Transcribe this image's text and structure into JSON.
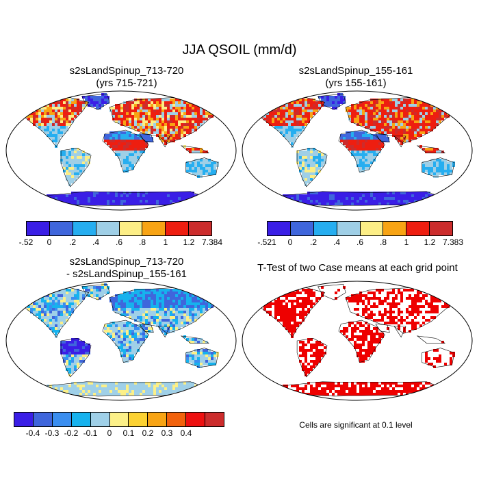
{
  "title": "JJA QSOIL (mm/d)",
  "panels": [
    {
      "line1": "s2sLandSpinup_713-720",
      "line2": "(yrs 715-721)",
      "scheme": "abs_a"
    },
    {
      "line1": "s2sLandSpinup_155-161",
      "line2": "(yrs 155-161)",
      "scheme": "abs_b"
    },
    {
      "line1": "s2sLandSpinup_713-720",
      "line2": "- s2sLandSpinup_155-161",
      "scheme": "diff"
    },
    {
      "line1": "T-Test of two Case means at each grid point",
      "line2": "",
      "scheme": "ttest"
    }
  ],
  "colorbars": {
    "left_top": {
      "colors": [
        "#3a1ee6",
        "#3f66dc",
        "#26aef0",
        "#9fcfe6",
        "#fcee86",
        "#f8a414",
        "#ee1e10",
        "#cc2c2c"
      ],
      "ticks": [
        "-.52",
        "0",
        ".2",
        ".4",
        ".6",
        ".8",
        "1",
        "1.2",
        "7.384"
      ]
    },
    "right_top": {
      "colors": [
        "#3a1ee6",
        "#3f66dc",
        "#26aef0",
        "#9fcfe6",
        "#fcee86",
        "#f8a414",
        "#ee1e10",
        "#cc2c2c"
      ],
      "ticks": [
        "-.521",
        "0",
        ".2",
        ".4",
        ".6",
        ".8",
        "1",
        "1.2",
        "7.383"
      ]
    },
    "left_bottom": {
      "colors": [
        "#3a1ee6",
        "#3f66dc",
        "#3a8ef0",
        "#16b2ee",
        "#9fd0e8",
        "#fcf088",
        "#fcd232",
        "#f8a414",
        "#f2620c",
        "#ee1010",
        "#cc2c2c"
      ],
      "ticks": [
        "-0.4",
        "-0.3",
        "-0.2",
        "-0.1",
        "0",
        "0.1",
        "0.2",
        "0.3",
        "0.4"
      ]
    }
  },
  "note": "Cells are significant at 0.1 level",
  "colors": {
    "ocean": "#ffffff",
    "ttest_sig": "#ee0000",
    "coast": "#000000"
  }
}
